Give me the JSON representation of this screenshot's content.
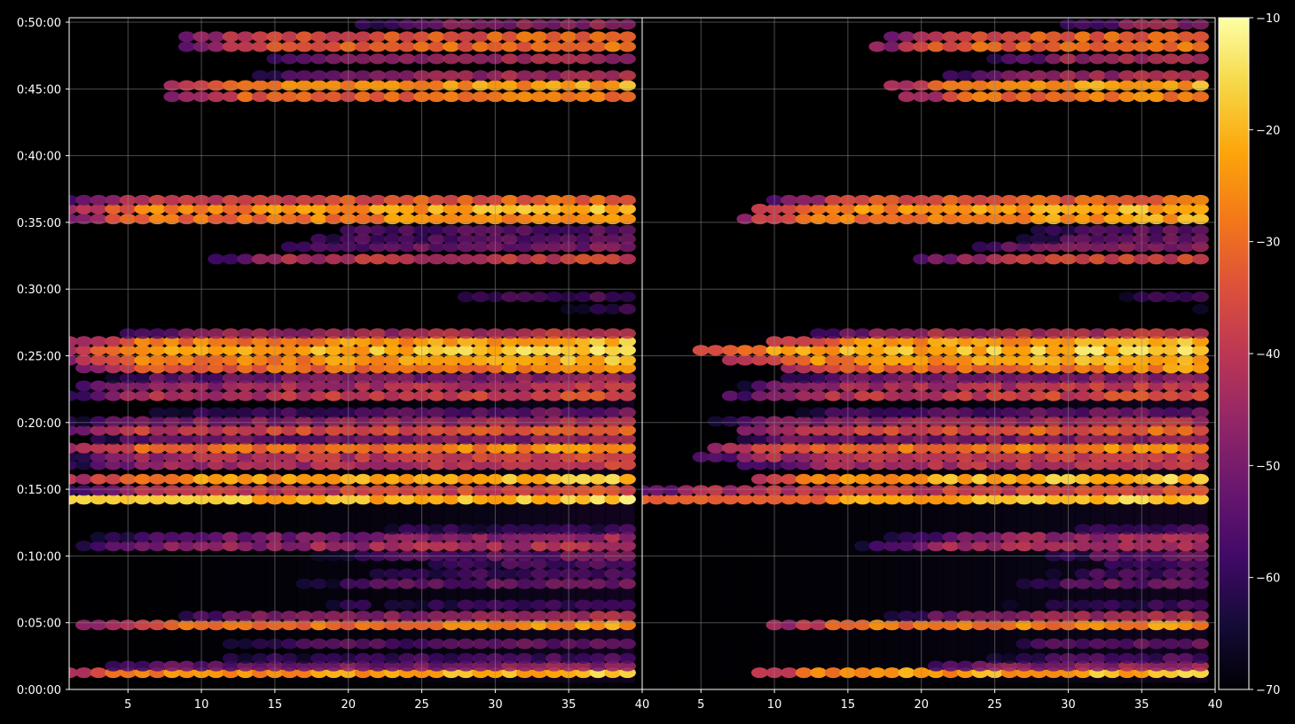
{
  "chart_data": {
    "type": "heatmap",
    "title": "",
    "xlabel": "",
    "ylabel": "",
    "style": {
      "background": "#000000",
      "axis_color": "#ffffff",
      "grid": true,
      "grid_color": "#808080",
      "colormap": "inferno"
    },
    "panels": [
      {
        "name": "",
        "xlim": [
          1,
          40
        ],
        "x_ticks": [
          5,
          10,
          15,
          20,
          25,
          30,
          35,
          40
        ]
      },
      {
        "name": "",
        "xlim": [
          1,
          40
        ],
        "x_ticks": [
          5,
          10,
          15,
          20,
          25,
          30,
          35,
          40
        ]
      }
    ],
    "y_axis": {
      "range_seconds": [
        0,
        3020
      ],
      "ticks": [
        {
          "seconds": 0,
          "label": "0:00:00"
        },
        {
          "seconds": 300,
          "label": "0:05:00"
        },
        {
          "seconds": 600,
          "label": "0:10:00"
        },
        {
          "seconds": 900,
          "label": "0:15:00"
        },
        {
          "seconds": 1200,
          "label": "0:20:00"
        },
        {
          "seconds": 1500,
          "label": "0:25:00"
        },
        {
          "seconds": 1800,
          "label": "0:30:00"
        },
        {
          "seconds": 2100,
          "label": "0:35:00"
        },
        {
          "seconds": 2400,
          "label": "0:40:00"
        },
        {
          "seconds": 2700,
          "label": "0:45:00"
        },
        {
          "seconds": 3000,
          "label": "0:50:00"
        }
      ]
    },
    "colorbar": {
      "range": [
        -70,
        -10
      ],
      "ticks": [
        {
          "value": -10,
          "label": "−10"
        },
        {
          "value": -20,
          "label": "−20"
        },
        {
          "value": -30,
          "label": "−30"
        },
        {
          "value": -40,
          "label": "−40"
        },
        {
          "value": -50,
          "label": "−50"
        },
        {
          "value": -60,
          "label": "−60"
        },
        {
          "value": -70,
          "label": "−70"
        }
      ]
    },
    "bands": [
      {
        "t": 75,
        "peak": -19,
        "strength": 1.0,
        "start": 1,
        "start2": 9
      },
      {
        "t": 105,
        "peak": -45,
        "strength": 0.8,
        "start": 2,
        "start2": 20
      },
      {
        "t": 140,
        "peak": -55,
        "strength": 0.6,
        "start": 8,
        "start2": 22
      },
      {
        "t": 205,
        "peak": -50,
        "strength": 0.5,
        "start": 10,
        "start2": 25
      },
      {
        "t": 290,
        "peak": -24,
        "strength": 0.95,
        "start": 2,
        "start2": 10
      },
      {
        "t": 330,
        "peak": -42,
        "strength": 0.7,
        "start": 8,
        "start2": 18
      },
      {
        "t": 380,
        "peak": -58,
        "strength": 0.5,
        "start": 14,
        "start2": 24
      },
      {
        "t": 475,
        "peak": -50,
        "strength": 0.6,
        "start": 16,
        "start2": 26
      },
      {
        "t": 520,
        "peak": -55,
        "strength": 0.5,
        "start": 17,
        "start2": 27
      },
      {
        "t": 565,
        "peak": -55,
        "strength": 0.5,
        "start": 22,
        "start2": 30
      },
      {
        "t": 600,
        "peak": -50,
        "strength": 0.6,
        "start": 18,
        "start2": 28
      },
      {
        "t": 645,
        "peak": -40,
        "strength": 0.9,
        "start": 2,
        "start2": 16
      },
      {
        "t": 685,
        "peak": -44,
        "strength": 0.9,
        "start": 2,
        "start2": 18
      },
      {
        "t": 720,
        "peak": -58,
        "strength": 0.5,
        "start": 18,
        "start2": 26
      },
      {
        "t": 855,
        "peak": -17,
        "strength": 1.0,
        "start": 1,
        "start2": 1
      },
      {
        "t": 895,
        "peak": -33,
        "strength": 0.9,
        "start": 1,
        "start2": 1
      },
      {
        "t": 945,
        "peak": -18,
        "strength": 1.0,
        "start": 1,
        "start2": 9
      },
      {
        "t": 1010,
        "peak": -38,
        "strength": 0.9,
        "start": 1,
        "start2": 8
      },
      {
        "t": 1045,
        "peak": -36,
        "strength": 0.9,
        "start": 1,
        "start2": 5
      },
      {
        "t": 1085,
        "peak": -24,
        "strength": 0.95,
        "start": 1,
        "start2": 6
      },
      {
        "t": 1125,
        "peak": -45,
        "strength": 0.7,
        "start": 1,
        "start2": 6
      },
      {
        "t": 1165,
        "peak": -30,
        "strength": 0.9,
        "start": 1,
        "start2": 8
      },
      {
        "t": 1205,
        "peak": -40,
        "strength": 0.75,
        "start": 1,
        "start2": 6
      },
      {
        "t": 1245,
        "peak": -50,
        "strength": 0.6,
        "start": 5,
        "start2": 10
      },
      {
        "t": 1320,
        "peak": -35,
        "strength": 0.9,
        "start": 1,
        "start2": 7
      },
      {
        "t": 1365,
        "peak": -38,
        "strength": 0.9,
        "start": 1,
        "start2": 8
      },
      {
        "t": 1400,
        "peak": -45,
        "strength": 0.7,
        "start": 2,
        "start2": 10
      },
      {
        "t": 1445,
        "peak": -25,
        "strength": 0.95,
        "start": 2,
        "start2": 11
      },
      {
        "t": 1480,
        "peak": -20,
        "strength": 0.95,
        "start": 1,
        "start2": 7
      },
      {
        "t": 1525,
        "peak": -16,
        "strength": 1.0,
        "start": 1,
        "start2": 5
      },
      {
        "t": 1565,
        "peak": -20,
        "strength": 0.95,
        "start": 1,
        "start2": 10
      },
      {
        "t": 1600,
        "peak": -38,
        "strength": 0.7,
        "start": 5,
        "start2": 13
      },
      {
        "t": 1710,
        "peak": -58,
        "strength": 0.4,
        "start": 32,
        "start2": 38
      },
      {
        "t": 1765,
        "peak": -55,
        "strength": 0.4,
        "start": 25,
        "start2": 32
      },
      {
        "t": 1935,
        "peak": -36,
        "strength": 0.85,
        "start": 11,
        "start2": 20
      },
      {
        "t": 1990,
        "peak": -48,
        "strength": 0.7,
        "start": 14,
        "start2": 22
      },
      {
        "t": 2025,
        "peak": -52,
        "strength": 0.6,
        "start": 14,
        "start2": 25
      },
      {
        "t": 2065,
        "peak": -52,
        "strength": 0.6,
        "start": 16,
        "start2": 26
      },
      {
        "t": 2115,
        "peak": -22,
        "strength": 1.0,
        "start": 1,
        "start2": 8
      },
      {
        "t": 2160,
        "peak": -20,
        "strength": 1.0,
        "start": 1,
        "start2": 9
      },
      {
        "t": 2200,
        "peak": -30,
        "strength": 0.9,
        "start": 1,
        "start2": 10
      },
      {
        "t": 2665,
        "peak": -27,
        "strength": 0.95,
        "start": 8,
        "start2": 19
      },
      {
        "t": 2715,
        "peak": -22,
        "strength": 0.95,
        "start": 8,
        "start2": 18
      },
      {
        "t": 2760,
        "peak": -42,
        "strength": 0.75,
        "start": 14,
        "start2": 22
      },
      {
        "t": 2835,
        "peak": -42,
        "strength": 0.75,
        "start": 15,
        "start2": 25
      },
      {
        "t": 2890,
        "peak": -28,
        "strength": 0.9,
        "start": 9,
        "start2": 17
      },
      {
        "t": 2935,
        "peak": -30,
        "strength": 0.9,
        "start": 9,
        "start2": 18
      },
      {
        "t": 2990,
        "peak": -45,
        "strength": 0.7,
        "start": 20,
        "start2": 30
      }
    ]
  }
}
